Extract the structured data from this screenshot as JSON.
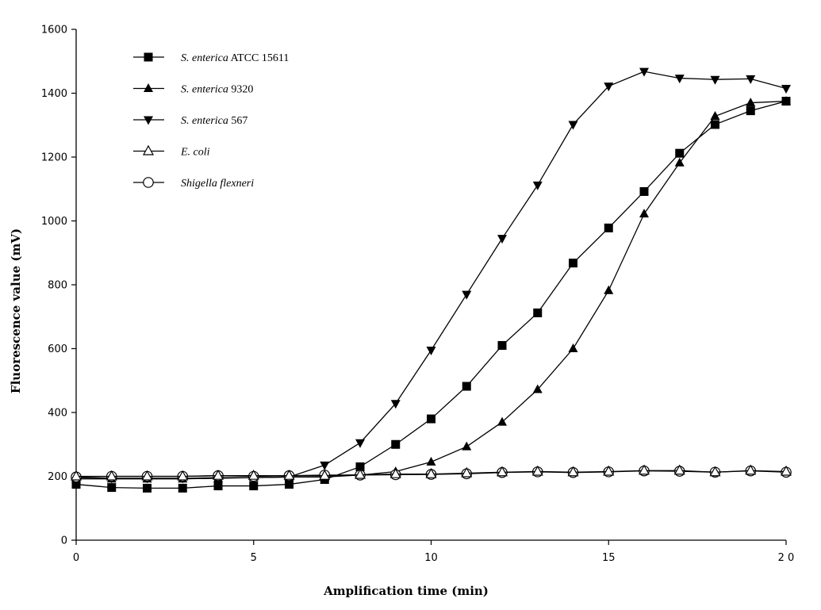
{
  "chart_data": {
    "type": "line",
    "xlabel": "Amplification time (min)",
    "ylabel": "Fluorescence value (mV)",
    "xlim": [
      0,
      20
    ],
    "ylim": [
      0,
      1600
    ],
    "xticks": [
      0,
      5,
      10,
      15,
      20
    ],
    "xtick_labels": [
      "0",
      "5",
      "10",
      "15",
      "2 0"
    ],
    "yticks": [
      0,
      200,
      400,
      600,
      800,
      1000,
      1200,
      1400,
      1600
    ],
    "ytick_labels": [
      "0",
      "200",
      "400",
      "600",
      "800",
      "1000",
      "1200",
      "1400",
      "1600"
    ],
    "grid": false,
    "legend_position": "top-left",
    "x": [
      0,
      1,
      2,
      3,
      4,
      5,
      6,
      7,
      8,
      9,
      10,
      11,
      12,
      13,
      14,
      15,
      16,
      17,
      18,
      19,
      20
    ],
    "series": [
      {
        "name": "S. enterica ATCC 15611",
        "name_italic": "S. enterica",
        "name_rest": " ATCC 15611",
        "marker": "square-filled",
        "values": [
          175,
          165,
          163,
          163,
          170,
          170,
          175,
          190,
          230,
          300,
          380,
          482,
          610,
          712,
          868,
          978,
          1092,
          1212,
          1302,
          1345,
          1375
        ]
      },
      {
        "name": "S. enterica 9320",
        "name_italic": "S. enterica",
        "name_rest": " 9320",
        "marker": "triangle-up-filled",
        "values": [
          192,
          192,
          192,
          192,
          194,
          196,
          198,
          198,
          204,
          215,
          245,
          293,
          370,
          472,
          600,
          782,
          1022,
          1182,
          1328,
          1370,
          1375
        ]
      },
      {
        "name": "S. enterica 567",
        "name_italic": "S. enterica",
        "name_rest": " 567",
        "marker": "triangle-down-filled",
        "values": [
          196,
          194,
          194,
          194,
          196,
          196,
          198,
          235,
          305,
          428,
          595,
          770,
          945,
          1112,
          1302,
          1422,
          1468,
          1447,
          1443,
          1445,
          1415
        ]
      },
      {
        "name": "E. coli",
        "name_italic": "E. coli",
        "name_rest": "",
        "marker": "triangle-up-open",
        "values": [
          200,
          200,
          200,
          200,
          202,
          202,
          202,
          202,
          205,
          207,
          207,
          210,
          213,
          215,
          213,
          215,
          218,
          218,
          213,
          218,
          215
        ]
      },
      {
        "name": "Shigella flexneri",
        "name_italic": "Shigella flexneri",
        "name_rest": "",
        "marker": "circle-open",
        "values": [
          198,
          200,
          200,
          200,
          202,
          200,
          202,
          204,
          204,
          205,
          206,
          208,
          212,
          214,
          212,
          214,
          217,
          216,
          213,
          217,
          213
        ]
      }
    ]
  }
}
